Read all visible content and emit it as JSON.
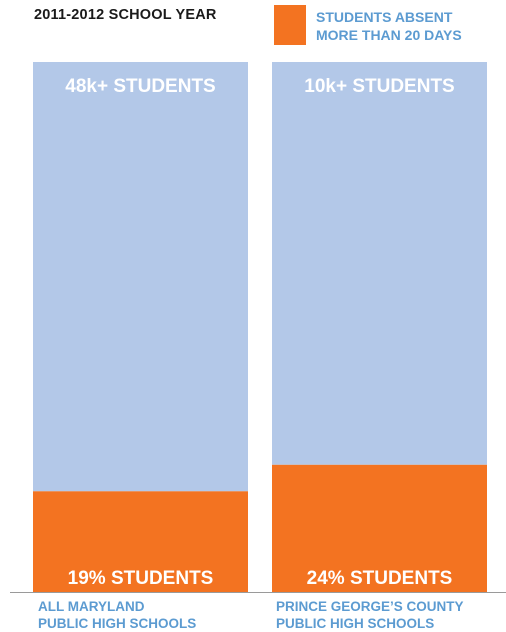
{
  "chart_data": {
    "type": "bar",
    "stacked": true,
    "title": "2011-2012 SCHOOL YEAR",
    "legend": [
      {
        "name": "STUDENTS ABSENT MORE THAN 20 DAYS",
        "lines": [
          "STUDENTS ABSENT",
          "MORE THAN 20 DAYS"
        ],
        "color": "#f37321"
      }
    ],
    "categories": [
      {
        "lines": [
          "ALL MARYLAND",
          "PUBLIC HIGH SCHOOLS"
        ],
        "total_label": "48k+ STUDENTS",
        "percent_label": "19% STUDENTS",
        "percent_absent": 19
      },
      {
        "lines": [
          "PRINCE GEORGE’S COUNTY",
          "PUBLIC HIGH SCHOOLS"
        ],
        "total_label": "10k+ STUDENTS",
        "percent_label": "24% STUDENTS",
        "percent_absent": 24
      }
    ],
    "series": [
      {
        "name": "STUDENTS ABSENT MORE THAN 20 DAYS",
        "values": [
          19,
          24
        ],
        "color": "#f37321"
      },
      {
        "values": [
          81,
          76
        ],
        "color": "#b3c8e8"
      }
    ],
    "ylim": [
      0,
      100
    ]
  }
}
